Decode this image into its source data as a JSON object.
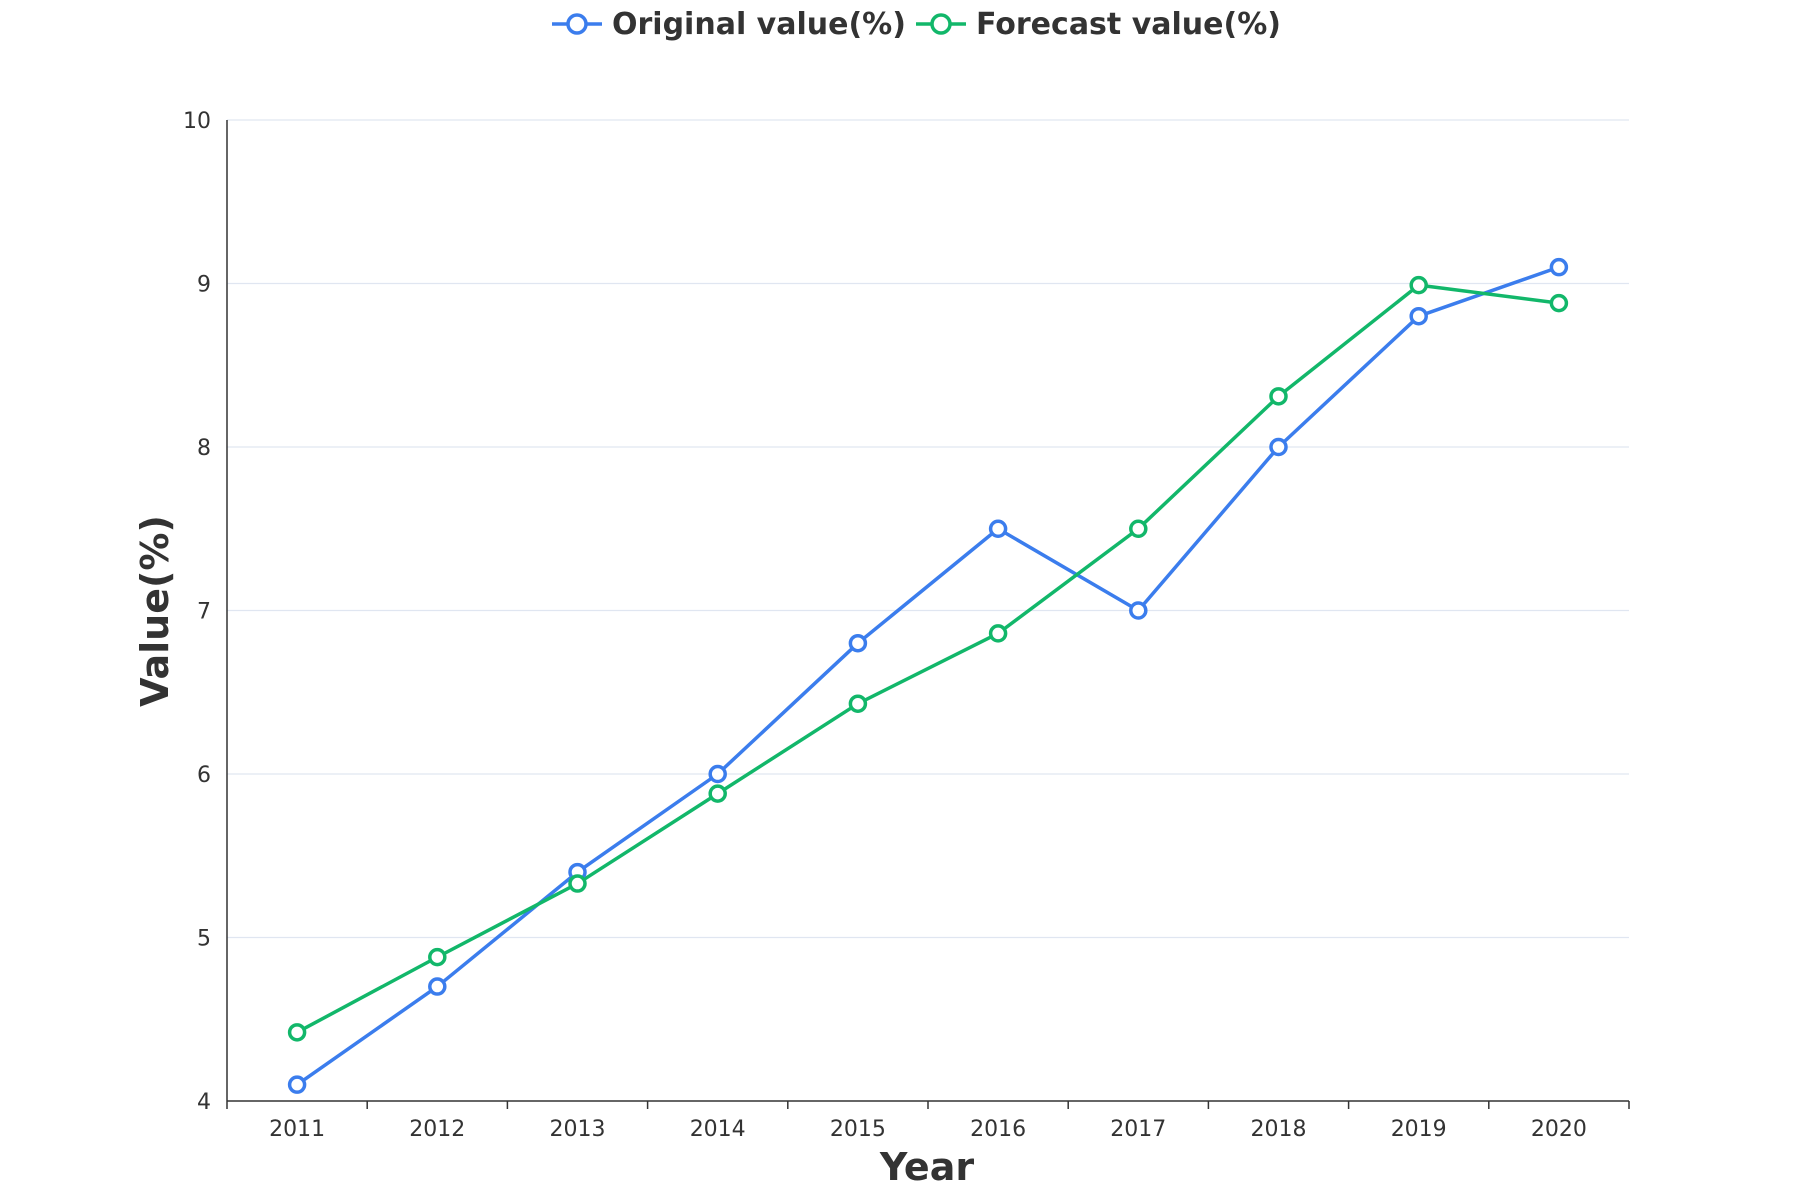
{
  "chart_data": {
    "type": "line",
    "title": "",
    "xlabel": "Year",
    "ylabel": "Value(%)",
    "categories": [
      "2011",
      "2012",
      "2013",
      "2014",
      "2015",
      "2016",
      "2017",
      "2018",
      "2019",
      "2020"
    ],
    "ylim": [
      4,
      10
    ],
    "yticks": [
      "4",
      "5",
      "6",
      "7",
      "8",
      "9",
      "10"
    ],
    "grid": true,
    "legend_position": "top-center",
    "series": [
      {
        "name": "Original value(%)",
        "color": "#3b7ded",
        "values": [
          4.1,
          4.7,
          5.4,
          6.0,
          6.8,
          7.5,
          7.0,
          8.0,
          8.8,
          9.1
        ]
      },
      {
        "name": "Forecast value(%)",
        "color": "#12b76a",
        "values": [
          4.42,
          4.88,
          5.33,
          5.88,
          6.43,
          6.86,
          7.5,
          8.31,
          8.99,
          8.88
        ]
      }
    ]
  }
}
